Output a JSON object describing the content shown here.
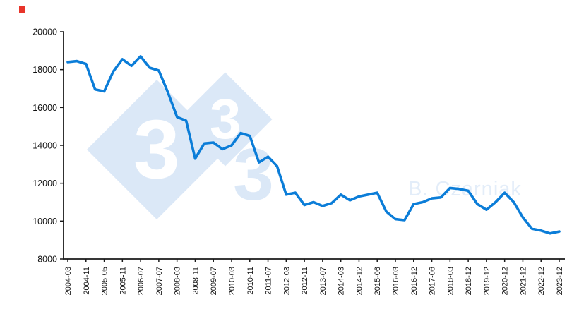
{
  "watermark": {
    "digit1": "3",
    "digit2": "3",
    "digit3": "3",
    "author": "B. Czarniak"
  },
  "chart_data": {
    "type": "line",
    "title": "",
    "xlabel": "",
    "ylabel": "",
    "ylim": [
      8000,
      20000
    ],
    "yticks": [
      8000,
      10000,
      12000,
      14000,
      16000,
      18000,
      20000
    ],
    "grid": false,
    "legend": "none",
    "line_color": "#0b7dd8",
    "axis_color": "#1a1a1a",
    "label_step": 2,
    "x_labels": [
      "2004-03",
      "2004-11",
      "2005-05",
      "2005-11",
      "2006-07",
      "2007-07",
      "2008-03",
      "2008-11",
      "2009-07",
      "2010-03",
      "2010-11",
      "2011-07",
      "2012-03",
      "2012-11",
      "2013-07",
      "2014-03",
      "2014-12",
      "2015-06",
      "2016-03",
      "2016-12",
      "2017-06",
      "2018-03",
      "2018-12",
      "2019-12",
      "2020-12",
      "2021-12",
      "2022-12",
      "2023-12"
    ],
    "values": [
      18400,
      18450,
      18300,
      16950,
      16850,
      17900,
      18550,
      18200,
      18700,
      18100,
      17950,
      16800,
      15500,
      15300,
      13300,
      14100,
      14150,
      13800,
      14000,
      14650,
      14500,
      13100,
      13400,
      12900,
      11400,
      11500,
      10850,
      11000,
      10800,
      10950,
      11400,
      11100,
      11300,
      11400,
      11500,
      10500,
      10100,
      10050,
      10900,
      11000,
      11200,
      11250,
      11750,
      11700,
      11600,
      10900,
      10600,
      11000,
      11500,
      11000,
      10200,
      9600,
      9500,
      9350,
      9450
    ]
  }
}
